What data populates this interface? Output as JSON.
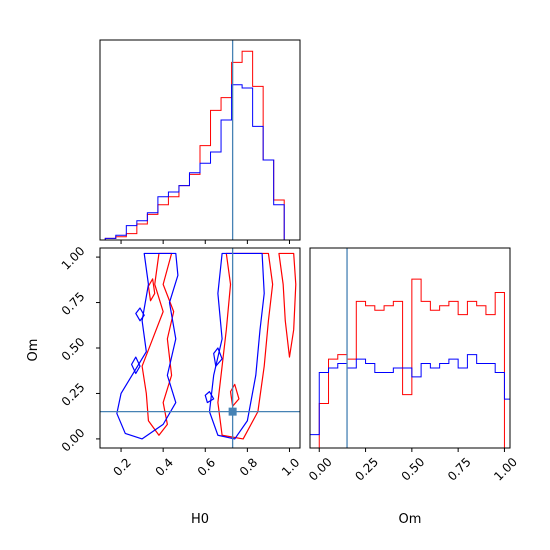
{
  "chart_data": {
    "type": "corner",
    "parameters": [
      "H0",
      "Om"
    ],
    "truths": {
      "H0": 0.73,
      "Om": 0.15
    },
    "truth_color": "#4682b4",
    "series_colors": {
      "red": "#ff0000",
      "blue": "#0000ff"
    },
    "panels": [
      {
        "id": "hist-H0",
        "type": "histogram",
        "x": "H0",
        "xlim": [
          0.1,
          1.05
        ],
        "xticks": [
          0.2,
          0.4,
          0.6,
          0.8,
          1.0
        ],
        "bin_edges": [
          0.1,
          0.125,
          0.15,
          0.175,
          0.2,
          0.225,
          0.25,
          0.275,
          0.3,
          0.325,
          0.35,
          0.375,
          0.4,
          0.425,
          0.45,
          0.475,
          0.5,
          0.525,
          0.55,
          0.575,
          0.6,
          0.625,
          0.65,
          0.675,
          0.7,
          0.725,
          0.75,
          0.775,
          0.8,
          0.825,
          0.85,
          0.875,
          0.9,
          0.925,
          0.95,
          0.975,
          1.0
        ],
        "series": [
          {
            "color": "#ff0000",
            "counts": [
              0,
              1,
              1,
              2,
              2,
              4,
              4,
              10,
              10,
              16,
              16,
              22,
              22,
              27,
              27,
              34,
              34,
              41,
              41,
              59,
              59,
              81,
              81,
              89,
              89,
              111,
              111,
              118,
              118,
              96,
              96,
              50,
              50,
              25,
              25,
              0
            ]
          },
          {
            "color": "#0000ff",
            "counts": [
              0,
              1,
              1,
              3,
              3,
              9,
              9,
              12,
              12,
              17,
              17,
              27,
              27,
              30,
              30,
              34,
              34,
              42,
              42,
              48,
              48,
              55,
              55,
              75,
              75,
              97,
              97,
              95,
              95,
              71,
              71,
              50,
              50,
              22,
              22,
              0
            ]
          }
        ]
      },
      {
        "id": "contour-H0-Om",
        "type": "contour",
        "x": "H0",
        "y": "Om",
        "xlim": [
          0.1,
          1.05
        ],
        "ylim": [
          -0.05,
          1.05
        ],
        "xticks": [
          0.2,
          0.4,
          0.6,
          0.8,
          1.0
        ],
        "yticks": [
          0.0,
          0.25,
          0.5,
          0.75,
          1.0
        ],
        "series": [
          {
            "color": "#ff0000",
            "contours": [
              [
                [
                  0.38,
                  1.02
                ],
                [
                  0.36,
                  0.85
                ],
                [
                  0.4,
                  0.7
                ],
                [
                  0.35,
                  0.55
                ],
                [
                  0.3,
                  0.4
                ],
                [
                  0.32,
                  0.25
                ],
                [
                  0.33,
                  0.1
                ],
                [
                  0.38,
                  0.02
                ],
                [
                  0.42,
                  0.08
                ],
                [
                  0.4,
                  0.2
                ],
                [
                  0.44,
                  0.35
                ],
                [
                  0.42,
                  0.55
                ],
                [
                  0.45,
                  0.7
                ],
                [
                  0.4,
                  0.85
                ],
                [
                  0.44,
                  1.02
                ]
              ],
              [
                [
                  0.35,
                  0.88
                ],
                [
                  0.36,
                  0.8
                ],
                [
                  0.34,
                  0.76
                ],
                [
                  0.33,
                  0.84
                ]
              ],
              [
                [
                  0.7,
                  1.02
                ],
                [
                  0.72,
                  0.85
                ],
                [
                  0.7,
                  0.6
                ],
                [
                  0.68,
                  0.4
                ],
                [
                  0.66,
                  0.2
                ],
                [
                  0.68,
                  0.02
                ],
                [
                  0.78,
                  0.0
                ],
                [
                  0.85,
                  0.15
                ],
                [
                  0.88,
                  0.4
                ],
                [
                  0.9,
                  0.65
                ],
                [
                  0.92,
                  0.85
                ],
                [
                  0.9,
                  1.02
                ]
              ],
              [
                [
                  0.95,
                  1.02
                ],
                [
                  0.97,
                  0.85
                ],
                [
                  0.98,
                  0.65
                ],
                [
                  1.0,
                  0.45
                ],
                [
                  1.02,
                  0.6
                ],
                [
                  1.03,
                  0.85
                ],
                [
                  1.02,
                  1.02
                ]
              ],
              [
                [
                  0.74,
                  0.3
                ],
                [
                  0.76,
                  0.22
                ],
                [
                  0.73,
                  0.18
                ],
                [
                  0.72,
                  0.26
                ]
              ]
            ]
          },
          {
            "color": "#0000ff",
            "contours": [
              [
                [
                  0.31,
                  1.02
                ],
                [
                  0.33,
                  0.85
                ],
                [
                  0.3,
                  0.65
                ],
                [
                  0.32,
                  0.48
                ],
                [
                  0.2,
                  0.25
                ],
                [
                  0.18,
                  0.14
                ],
                [
                  0.22,
                  0.03
                ],
                [
                  0.3,
                  0.0
                ],
                [
                  0.4,
                  0.08
                ],
                [
                  0.46,
                  0.2
                ],
                [
                  0.42,
                  0.35
                ],
                [
                  0.46,
                  0.55
                ],
                [
                  0.43,
                  0.75
                ],
                [
                  0.47,
                  0.9
                ],
                [
                  0.46,
                  1.02
                ]
              ],
              [
                [
                  0.29,
                  0.72
                ],
                [
                  0.31,
                  0.68
                ],
                [
                  0.29,
                  0.65
                ],
                [
                  0.27,
                  0.69
                ]
              ],
              [
                [
                  0.27,
                  0.45
                ],
                [
                  0.29,
                  0.4
                ],
                [
                  0.27,
                  0.36
                ],
                [
                  0.25,
                  0.41
                ]
              ],
              [
                [
                  0.68,
                  1.02
                ],
                [
                  0.66,
                  0.8
                ],
                [
                  0.68,
                  0.55
                ],
                [
                  0.64,
                  0.35
                ],
                [
                  0.62,
                  0.15
                ],
                [
                  0.66,
                  0.02
                ],
                [
                  0.74,
                  0.0
                ],
                [
                  0.8,
                  0.1
                ],
                [
                  0.84,
                  0.35
                ],
                [
                  0.86,
                  0.6
                ],
                [
                  0.88,
                  0.8
                ],
                [
                  0.87,
                  1.02
                ]
              ],
              [
                [
                  0.62,
                  0.26
                ],
                [
                  0.64,
                  0.22
                ],
                [
                  0.61,
                  0.2
                ],
                [
                  0.6,
                  0.24
                ]
              ],
              [
                [
                  0.66,
                  0.5
                ],
                [
                  0.68,
                  0.44
                ],
                [
                  0.65,
                  0.4
                ],
                [
                  0.64,
                  0.47
                ]
              ]
            ]
          }
        ]
      },
      {
        "id": "hist-Om",
        "type": "histogram",
        "x": "Om",
        "xlim": [
          -0.05,
          1.03
        ],
        "xticks": [
          0.0,
          0.25,
          0.5,
          0.75,
          1.0
        ],
        "bin_edges": [
          -0.05,
          0.0,
          0.05,
          0.1,
          0.15,
          0.2,
          0.25,
          0.3,
          0.35,
          0.4,
          0.45,
          0.5,
          0.55,
          0.6,
          0.65,
          0.7,
          0.75,
          0.8,
          0.85,
          0.9,
          0.95,
          1.0,
          1.03
        ],
        "series": [
          {
            "color": "#ff0000",
            "counts": [
              0,
              10,
              20,
              21,
              20,
              33,
              32,
              31,
              32,
              33,
              12,
              38,
              33,
              31,
              32,
              33,
              30,
              33,
              32,
              30,
              35,
              0
            ]
          },
          {
            "color": "#0000ff",
            "counts": [
              3,
              17,
              18,
              19,
              18,
              20,
              19,
              17,
              17,
              18,
              18,
              16,
              19,
              18,
              19,
              20,
              18,
              21,
              19,
              19,
              17,
              11
            ]
          }
        ]
      }
    ]
  },
  "axes": {
    "xlabel_H0": "H0",
    "xlabel_Om": "Om",
    "ylabel_Om": "Om"
  }
}
